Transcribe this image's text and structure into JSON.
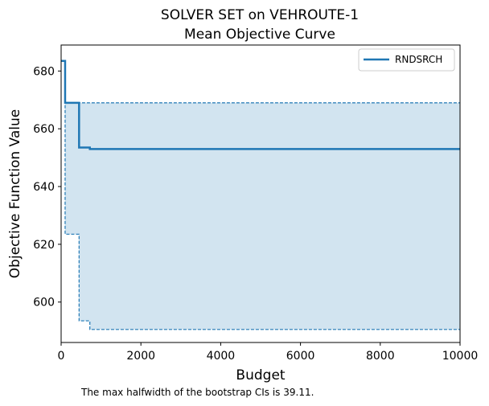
{
  "chart_data": {
    "type": "line",
    "title_line1": "SOLVER SET on VEHROUTE-1",
    "title_line2": "Mean Objective Curve",
    "xlabel": "Budget",
    "ylabel": "Objective Function Value",
    "xlim": [
      0,
      10000
    ],
    "ylim": [
      586,
      689
    ],
    "x_ticks": [
      0,
      2000,
      4000,
      6000,
      8000,
      10000
    ],
    "y_ticks": [
      600,
      620,
      640,
      660,
      680
    ],
    "grid": false,
    "legend_position": "top-right",
    "series": [
      {
        "name": "RNDSRCH",
        "color": "#1f77b4",
        "step": true,
        "x": [
          0,
          100,
          450,
          720,
          10000
        ],
        "y": [
          683.5,
          669,
          653.5,
          653,
          653
        ]
      }
    ],
    "ci_band": {
      "color": "#1f77b4",
      "x": [
        0,
        100,
        450,
        720,
        10000
      ],
      "upper": [
        683.5,
        669,
        669,
        669,
        669
      ],
      "lower": [
        683.5,
        623.5,
        593.5,
        590.5,
        590.5
      ]
    },
    "note": "The max halfwidth of the bootstrap CIs is 39.11."
  }
}
